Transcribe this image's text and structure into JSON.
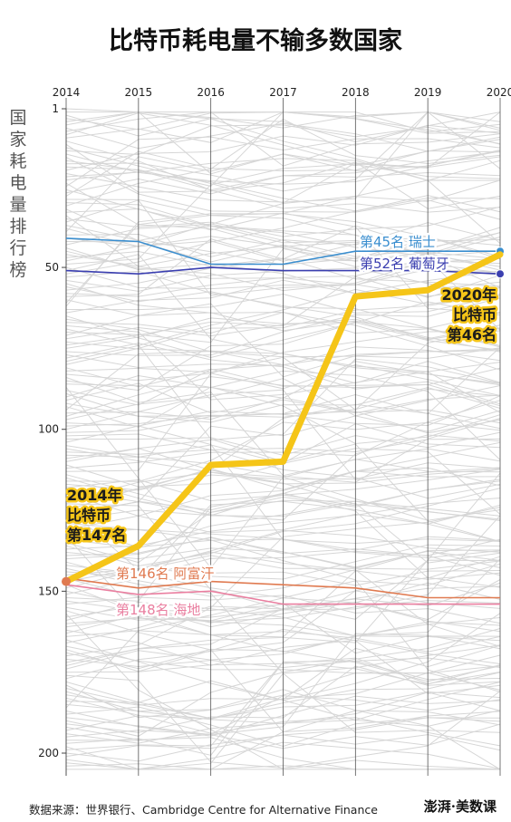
{
  "chart_data": {
    "type": "line",
    "title": "比特币耗电量不输多数国家",
    "ylabel": "国家耗电量排行榜",
    "x": [
      2014,
      2015,
      2016,
      2017,
      2018,
      2019,
      2020
    ],
    "x_ticks": [
      "2014",
      "2015",
      "2016",
      "2017",
      "2018",
      "2019",
      "2020"
    ],
    "y_ticks": [
      "1",
      "50",
      "100",
      "150",
      "200"
    ],
    "y_tick_values": [
      1,
      50,
      100,
      150,
      200
    ],
    "ylim": [
      1,
      207
    ],
    "y_inverted": true,
    "highlight_series": {
      "name": "比特币",
      "values": [
        147,
        136,
        111,
        110,
        59,
        57,
        46
      ],
      "color": "#f5c518"
    },
    "series": [
      {
        "label": "第45名  瑞士",
        "values": [
          41,
          42,
          49,
          49,
          45,
          45,
          45
        ],
        "color": "#3a8ecf"
      },
      {
        "label": "第52名  葡萄牙",
        "values": [
          51,
          52,
          50,
          51,
          51,
          51,
          52
        ],
        "color": "#3b3fb0"
      },
      {
        "label": "第146名  阿富汗",
        "values": [
          146,
          149,
          147,
          148,
          149,
          152,
          152
        ],
        "color": "#e07a50"
      },
      {
        "label": "第148名  海地",
        "values": [
          148,
          151,
          150,
          154,
          154,
          154,
          154
        ],
        "color": "#ea7fa0"
      }
    ],
    "annotations": {
      "start": [
        "2014年",
        "比特币",
        "第147名"
      ],
      "end": [
        "2020年",
        "比特币",
        "第46名"
      ]
    },
    "background_lines": "gray",
    "grid": false,
    "source": "数据来源：世界银行、Cambridge Centre for Alternative Finance",
    "logo": "澎湃·美数课"
  }
}
